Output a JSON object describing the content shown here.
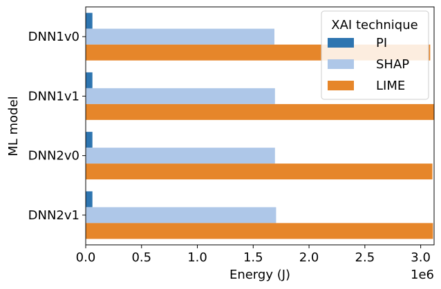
{
  "chart_data": {
    "type": "bar",
    "orientation": "horizontal",
    "categories": [
      "DNN1v0",
      "DNN1v1",
      "DNN2v0",
      "DNN2v1"
    ],
    "series": [
      {
        "name": "PI",
        "color": "#2e75b0",
        "values": [
          60000,
          60000,
          60000,
          60000
        ]
      },
      {
        "name": "SHAP",
        "color": "#aec7e8",
        "values": [
          1690000,
          1695000,
          1695000,
          1705000
        ]
      },
      {
        "name": "LIME",
        "color": "#e6862a",
        "values": [
          3085000,
          3120000,
          3105000,
          3110000
        ]
      }
    ],
    "xlabel": "Energy (J)",
    "ylabel": "ML model",
    "x_scale_label": "1e6",
    "xlim": [
      0,
      3120000
    ],
    "xticks": [
      0,
      500000,
      1000000,
      1500000,
      2000000,
      2500000,
      3000000
    ],
    "xtick_labels": [
      "0.0",
      "0.5",
      "1.0",
      "1.5",
      "2.0",
      "2.5",
      "3.0"
    ],
    "grid": false,
    "legend": {
      "title": "XAI technique",
      "placement": "top-right"
    }
  }
}
